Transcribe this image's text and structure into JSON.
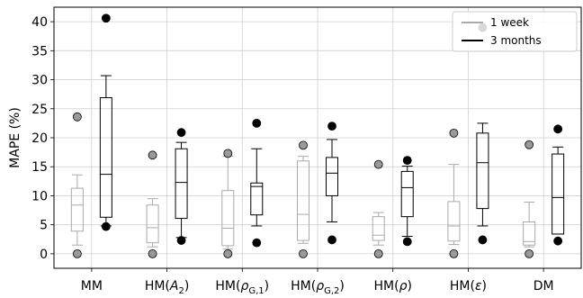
{
  "chart_data": {
    "type": "boxplot",
    "ylabel": "MAPE (%)",
    "ylim": [
      -2.5,
      42.5
    ],
    "yticks": [
      0,
      5,
      10,
      15,
      20,
      25,
      30,
      35,
      40
    ],
    "grid": true,
    "legend_position": "top-right",
    "categories": [
      "MM",
      "HM(A2)",
      "HM(ρG,1)",
      "HM(ρG,2)",
      "HM(ρ)",
      "HM(ε)",
      "DM"
    ],
    "category_labels": [
      {
        "base": "MM",
        "sub": "",
        "sup": ""
      },
      {
        "base": "HM(",
        "italic": "A",
        "sub": "2",
        "tail": ")"
      },
      {
        "base": "HM(",
        "italic": "ρ",
        "sub": "G,1",
        "tail": ")"
      },
      {
        "base": "HM(",
        "italic": "ρ",
        "sub": "G,2",
        "tail": ")"
      },
      {
        "base": "HM(",
        "italic": "ρ",
        "sub": "",
        "tail": ")"
      },
      {
        "base": "HM(",
        "italic": "ε",
        "sub": "",
        "tail": ")"
      },
      {
        "base": "DM",
        "sub": "",
        "tail": ""
      }
    ],
    "series": [
      {
        "name": "1 week",
        "color": "#aaaaaa",
        "flier_color": "#999999",
        "boxes": [
          {
            "whislo": 1.5,
            "q1": 3.9,
            "med": 8.4,
            "q3": 11.3,
            "whishi": 13.6,
            "fliers": [
              0.0,
              23.6
            ]
          },
          {
            "whislo": 1.2,
            "q1": 1.9,
            "med": 4.5,
            "q3": 8.4,
            "whishi": 9.5,
            "fliers": [
              0.0,
              17.0
            ]
          },
          {
            "whislo": 0.8,
            "q1": 1.4,
            "med": 4.4,
            "q3": 10.9,
            "whishi": 16.8,
            "fliers": [
              0.0,
              17.3
            ]
          },
          {
            "whislo": 1.8,
            "q1": 2.3,
            "med": 6.8,
            "q3": 16.0,
            "whishi": 16.8,
            "fliers": [
              0.0,
              18.7
            ]
          },
          {
            "whislo": 1.5,
            "q1": 2.3,
            "med": 3.2,
            "q3": 6.4,
            "whishi": 7.1,
            "fliers": [
              0.0,
              15.4
            ]
          },
          {
            "whislo": 1.6,
            "q1": 2.2,
            "med": 4.8,
            "q3": 9.0,
            "whishi": 15.4,
            "fliers": [
              0.0,
              20.8
            ]
          },
          {
            "whislo": 1.2,
            "q1": 1.5,
            "med": 2.1,
            "q3": 5.5,
            "whishi": 8.9,
            "fliers": [
              0.0,
              18.8
            ]
          }
        ]
      },
      {
        "name": "3 months",
        "color": "#000000",
        "flier_color": "#000000",
        "boxes": [
          {
            "whislo": 4.8,
            "q1": 6.3,
            "med": 13.7,
            "q3": 26.9,
            "whishi": 30.7,
            "fliers": [
              4.7,
              40.6
            ]
          },
          {
            "whislo": 2.8,
            "q1": 6.1,
            "med": 12.3,
            "q3": 18.1,
            "whishi": 19.2,
            "fliers": [
              2.3,
              20.9
            ]
          },
          {
            "whislo": 4.8,
            "q1": 6.7,
            "med": 11.6,
            "q3": 12.2,
            "whishi": 18.1,
            "fliers": [
              1.9,
              22.5
            ]
          },
          {
            "whislo": 5.5,
            "q1": 10.0,
            "med": 13.9,
            "q3": 16.6,
            "whishi": 19.7,
            "fliers": [
              2.4,
              22.0
            ]
          },
          {
            "whislo": 3.0,
            "q1": 6.4,
            "med": 11.4,
            "q3": 14.2,
            "whishi": 15.1,
            "fliers": [
              2.1,
              16.1
            ]
          },
          {
            "whislo": 4.8,
            "q1": 7.8,
            "med": 15.7,
            "q3": 20.8,
            "whishi": 22.5,
            "fliers": [
              2.4,
              39.0
            ]
          },
          {
            "whislo": 3.4,
            "q1": 3.4,
            "med": 9.7,
            "q3": 17.2,
            "whishi": 18.4,
            "fliers": [
              2.2,
              21.5
            ]
          }
        ]
      }
    ]
  }
}
